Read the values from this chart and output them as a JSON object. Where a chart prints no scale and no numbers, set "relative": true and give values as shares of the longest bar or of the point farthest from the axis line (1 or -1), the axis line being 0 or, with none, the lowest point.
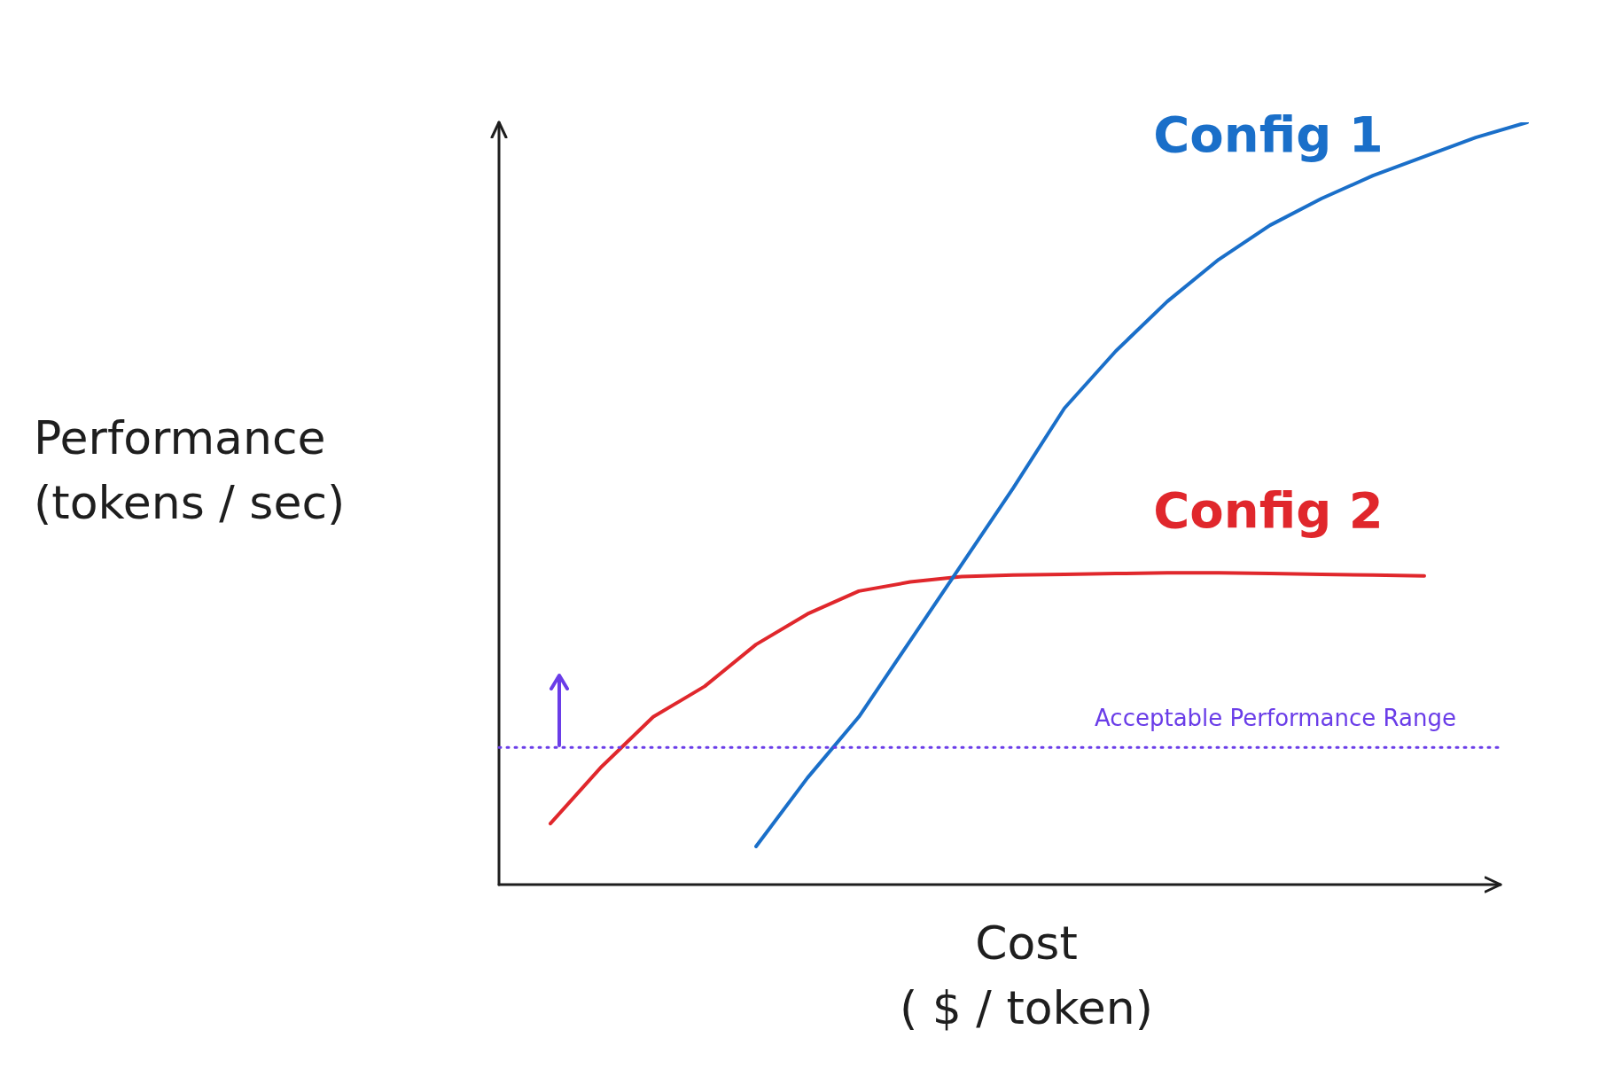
{
  "chart_data": {
    "type": "line",
    "relative": true,
    "xlabel": "Cost\n( $ / token)",
    "ylabel": "Performance\n(tokens / sec)",
    "legend": false,
    "marker": "none",
    "line_style": "solid",
    "categories": [
      null,
      null,
      null,
      null,
      null,
      null,
      null,
      null,
      null,
      null,
      null,
      null,
      null,
      null,
      null,
      null,
      null,
      null,
      null,
      null,
      null
    ],
    "series": [
      {
        "name": "Config 1",
        "color": "#1a6fc9",
        "values": [
          null,
          null,
          null,
          null,
          null,
          0.05,
          0.14,
          0.22,
          0.32,
          0.42,
          0.52,
          0.625,
          0.7,
          0.765,
          0.82,
          0.865,
          0.9,
          0.93,
          0.955,
          0.98,
          1
        ]
      },
      {
        "name": "Config 2",
        "color": "#e0272c",
        "values": [
          null,
          0.08,
          0.155,
          0.22,
          0.26,
          0.315,
          0.355,
          0.385,
          0.397,
          0.404,
          0.406,
          0.407,
          0.408,
          0.409,
          0.409,
          0.408,
          0.407,
          0.406,
          0.405,
          null,
          null
        ]
      }
    ],
    "ref_lines": [
      {
        "axis": "y",
        "value": 0.18,
        "label": "Acceptable Performance Range",
        "color": "#6a3de8",
        "line_style": "dotted"
      }
    ]
  }
}
